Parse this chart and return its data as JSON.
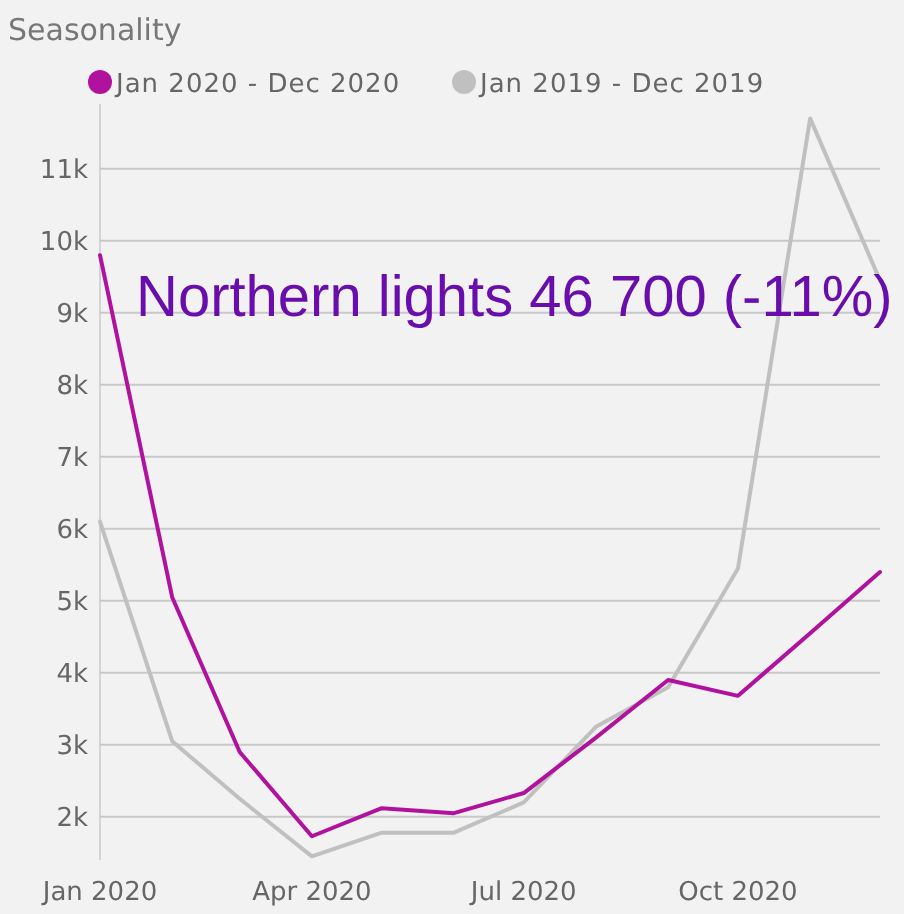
{
  "chart_data": {
    "type": "line",
    "title": "Seasonality",
    "x": [
      "2020-01",
      "2020-02",
      "2020-03",
      "2020-04",
      "2020-05",
      "2020-06",
      "2020-07",
      "2020-08",
      "2020-09",
      "2020-10",
      "2020-11",
      "2020-12"
    ],
    "series": [
      {
        "name": "Jan 2020 - Dec 2020",
        "color": "#b0129e",
        "values": [
          9800,
          5050,
          2900,
          1730,
          2120,
          2050,
          2330,
          3100,
          3900,
          3680,
          4550,
          5400
        ]
      },
      {
        "name": "Jan 2019 - Dec 2019",
        "color": "#c0c0c0",
        "values": [
          6100,
          3050,
          2250,
          1450,
          1780,
          1780,
          2200,
          3250,
          3800,
          5450,
          11700,
          9450
        ]
      }
    ],
    "xlim": [
      "2020-01",
      "2020-12"
    ],
    "xticks": [
      {
        "value": "2020-01",
        "label": "Jan 2020"
      },
      {
        "value": "2020-04",
        "label": "Apr 2020"
      },
      {
        "value": "2020-07",
        "label": "Jul 2020"
      },
      {
        "value": "2020-10",
        "label": "Oct 2020"
      }
    ],
    "ylim": [
      1400,
      11900
    ],
    "yticks": [
      {
        "value": 2000,
        "label": "2k"
      },
      {
        "value": 3000,
        "label": "3k"
      },
      {
        "value": 4000,
        "label": "4k"
      },
      {
        "value": 5000,
        "label": "5k"
      },
      {
        "value": 6000,
        "label": "6k"
      },
      {
        "value": 7000,
        "label": "7k"
      },
      {
        "value": 8000,
        "label": "8k"
      },
      {
        "value": 9000,
        "label": "9k"
      },
      {
        "value": 10000,
        "label": "10k"
      },
      {
        "value": 11000,
        "label": "11k"
      }
    ],
    "grid": "y",
    "legend": "top left",
    "marker": "none",
    "line_style": "solid",
    "annotations": [
      "Northern lights 46 700 (-11%)"
    ]
  }
}
